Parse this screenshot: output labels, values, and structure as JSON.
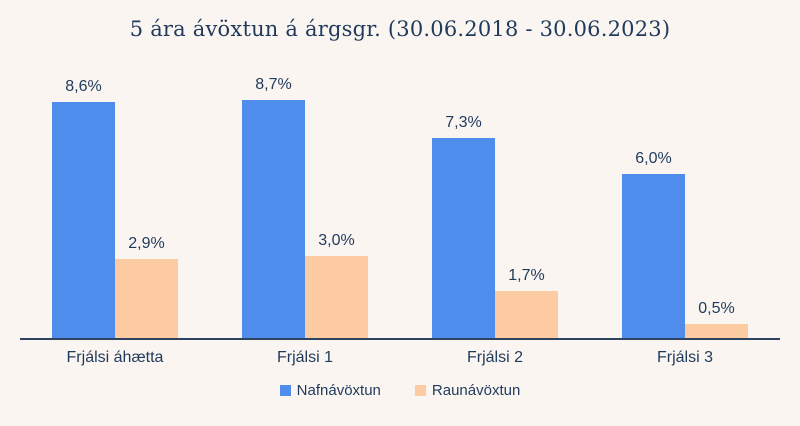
{
  "colors": {
    "background": "#FAF5F0",
    "text": "#1F3A5C",
    "axis": "#2E4360",
    "bar_nominal": "#4E8DEC",
    "bar_real": "#FDCBA1"
  },
  "chart_data": {
    "type": "bar",
    "title": "5 ára ávöxtun á árgsgr. (30.06.2018 - 30.06.2023)",
    "categories": [
      "Frjálsi áhætta",
      "Frjálsi 1",
      "Frjálsi 2",
      "Frjálsi 3"
    ],
    "series": [
      {
        "name": "Nafnávöxtun",
        "color": "#4E8DEC",
        "values": [
          8.6,
          8.7,
          7.3,
          6.0
        ],
        "labels": [
          "8,6%",
          "8,7%",
          "7,3%",
          "6,0%"
        ]
      },
      {
        "name": "Raunávöxtun",
        "color": "#FDCBA1",
        "values": [
          2.9,
          3.0,
          1.7,
          0.5
        ],
        "labels": [
          "2,9%",
          "3,0%",
          "1,7%",
          "0,5%"
        ]
      }
    ],
    "xlabel": "",
    "ylabel": "",
    "ylim": [
      0,
      10
    ],
    "grid": false,
    "value_labels_shown": true,
    "legend_position": "bottom"
  }
}
